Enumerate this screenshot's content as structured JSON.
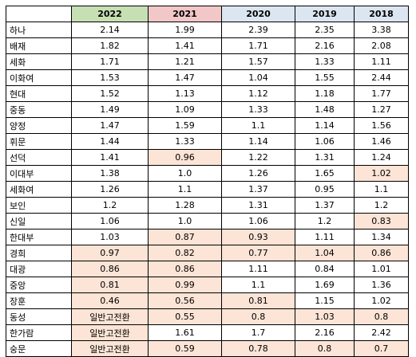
{
  "header": {
    "corner": "",
    "years": [
      {
        "label": "2022",
        "bg": "#c6e0b4"
      },
      {
        "label": "2021",
        "bg": "#f2c7c7"
      },
      {
        "label": "2020",
        "bg": "#dce6f1"
      },
      {
        "label": "2019",
        "bg": "#dce6f1"
      },
      {
        "label": "2018",
        "bg": "#dce6f1"
      }
    ]
  },
  "highlight_color": "#fce4d6",
  "rows": [
    {
      "name": "하나",
      "values": [
        "2.14",
        "1.99",
        "2.39",
        "2.35",
        "3.38"
      ],
      "hl": [
        false,
        false,
        false,
        false,
        false
      ]
    },
    {
      "name": "배재",
      "values": [
        "1.82",
        "1.41",
        "1.71",
        "2.16",
        "2.08"
      ],
      "hl": [
        false,
        false,
        false,
        false,
        false
      ]
    },
    {
      "name": "세화",
      "values": [
        "1.71",
        "1.21",
        "1.57",
        "1.33",
        "1.11"
      ],
      "hl": [
        false,
        false,
        false,
        false,
        false
      ]
    },
    {
      "name": "이화여",
      "values": [
        "1.53",
        "1.47",
        "1.04",
        "1.55",
        "2.44"
      ],
      "hl": [
        false,
        false,
        false,
        false,
        false
      ]
    },
    {
      "name": "현대",
      "values": [
        "1.52",
        "1.13",
        "1.12",
        "1.18",
        "1.77"
      ],
      "hl": [
        false,
        false,
        false,
        false,
        false
      ]
    },
    {
      "name": "중동",
      "values": [
        "1.49",
        "1.09",
        "1.33",
        "1.48",
        "1.27"
      ],
      "hl": [
        false,
        false,
        false,
        false,
        false
      ]
    },
    {
      "name": "양정",
      "values": [
        "1.47",
        "1.59",
        "1.1",
        "1.14",
        "1.56"
      ],
      "hl": [
        false,
        false,
        false,
        false,
        false
      ]
    },
    {
      "name": "휘문",
      "values": [
        "1.44",
        "1.33",
        "1.14",
        "1.06",
        "1.46"
      ],
      "hl": [
        false,
        false,
        false,
        false,
        false
      ]
    },
    {
      "name": "선덕",
      "values": [
        "1.41",
        "0.96",
        "1.22",
        "1.31",
        "1.24"
      ],
      "hl": [
        false,
        true,
        false,
        false,
        false
      ]
    },
    {
      "name": "이대부",
      "values": [
        "1.38",
        "1.0",
        "1.26",
        "1.65",
        "1.02"
      ],
      "hl": [
        false,
        false,
        false,
        false,
        true
      ]
    },
    {
      "name": "세화여",
      "values": [
        "1.26",
        "1.1",
        "1.37",
        "0.95",
        "1.1"
      ],
      "hl": [
        false,
        false,
        false,
        false,
        false
      ]
    },
    {
      "name": "보인",
      "values": [
        "1.2",
        "1.28",
        "1.31",
        "1.37",
        "1.2"
      ],
      "hl": [
        false,
        false,
        false,
        false,
        false
      ]
    },
    {
      "name": "신일",
      "values": [
        "1.06",
        "1.0",
        "1.06",
        "1.2",
        "0.83"
      ],
      "hl": [
        false,
        false,
        false,
        false,
        true
      ]
    },
    {
      "name": "한대부",
      "values": [
        "1.03",
        "0.87",
        "0.93",
        "1.11",
        "1.34"
      ],
      "hl": [
        false,
        true,
        true,
        false,
        false
      ]
    },
    {
      "name": "경희",
      "values": [
        "0.97",
        "0.82",
        "0.77",
        "1.04",
        "0.86"
      ],
      "hl": [
        true,
        true,
        true,
        true,
        true
      ]
    },
    {
      "name": "대광",
      "values": [
        "0.86",
        "0.86",
        "1.11",
        "0.84",
        "1.01"
      ],
      "hl": [
        true,
        true,
        false,
        false,
        false
      ]
    },
    {
      "name": "중앙",
      "values": [
        "0.81",
        "0.99",
        "1.1",
        "1.69",
        "1.36"
      ],
      "hl": [
        true,
        true,
        false,
        false,
        false
      ]
    },
    {
      "name": "장훈",
      "values": [
        "0.46",
        "0.56",
        "0.81",
        "1.15",
        "1.02"
      ],
      "hl": [
        true,
        true,
        true,
        false,
        false
      ]
    },
    {
      "name": "동성",
      "values": [
        "일반고전환",
        "0.55",
        "0.8",
        "1.03",
        "0.8"
      ],
      "hl": [
        true,
        true,
        true,
        true,
        true
      ]
    },
    {
      "name": "한가람",
      "values": [
        "일반고전환",
        "1.61",
        "1.7",
        "2.16",
        "2.42"
      ],
      "hl": [
        true,
        false,
        false,
        false,
        false
      ]
    },
    {
      "name": "숭문",
      "values": [
        "일반고전환",
        "0.59",
        "0.78",
        "0.8",
        "0.7"
      ],
      "hl": [
        true,
        true,
        true,
        true,
        true
      ]
    }
  ]
}
